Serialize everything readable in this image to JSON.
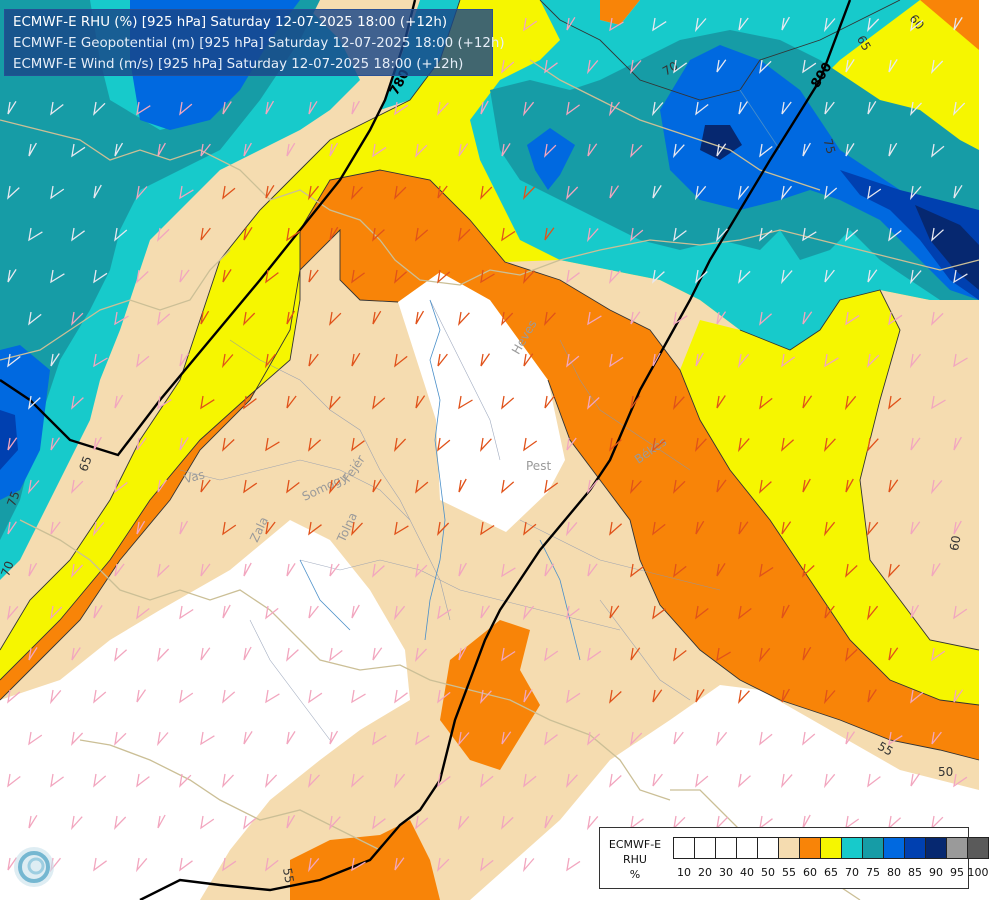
{
  "header": {
    "line1": "ECMWF-E RHU (%) [925 hPa] Saturday 12-07-2025 18:00 (+12h)",
    "line2": "ECMWF-E Geopotential (m) [925 hPa] Saturday 12-07-2025 18:00 (+12h)",
    "line3": "ECMWF-E Wind (m/s) [925 hPa] Saturday 12-07-2025 18:00 (+12h)"
  },
  "legend": {
    "title_line1": "ECMWF-E",
    "title_line2": "RHU",
    "title_line3": "%",
    "swatch_colors": [
      "#ffffff",
      "#ffffff",
      "#ffffff",
      "#ffffff",
      "#ffffff",
      "#f5dcb0",
      "#f88408",
      "#f6f600",
      "#17cacb",
      "#169ca6",
      "#0069e0",
      "#0040b0",
      "#062870",
      "#9a9a9a",
      "#5a5a5a"
    ],
    "ticks": [
      "10",
      "20",
      "30",
      "40",
      "50",
      "55",
      "60",
      "65",
      "70",
      "75",
      "80",
      "85",
      "90",
      "95",
      "100"
    ]
  },
  "map_labels": {
    "geopotential": [
      "780",
      "800"
    ],
    "rhu_contours": [
      "60",
      "65",
      "70",
      "75",
      "65",
      "75",
      "70",
      "60",
      "55",
      "50",
      "55"
    ],
    "regions": [
      "Heves",
      "Pest",
      "Békés",
      "Vas",
      "Somogy",
      "Fejér",
      "Tolna",
      "Zala"
    ]
  },
  "colors": {
    "white_band": "#ffffff",
    "beige_band": "#f5dcb0",
    "orange_band": "#f88408",
    "yellow_band": "#f6f600",
    "cyan_band": "#17cacb",
    "teal_band": "#169ca6",
    "blue_band": "#0069e0",
    "navy_band": "#0040b0",
    "dark_band": "#062870"
  },
  "icons": {
    "logo": "ecmwf-swirl-icon"
  }
}
